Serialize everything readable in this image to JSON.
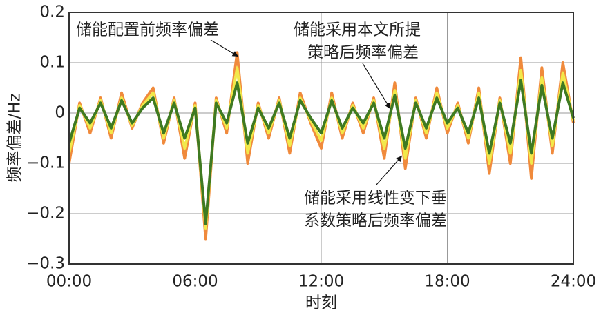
{
  "chart_data": {
    "type": "line",
    "y_label": "频率偏差/Hz",
    "x_label": "时刻",
    "xlim": [
      0,
      24
    ],
    "xticks": [
      {
        "value": 0,
        "label": "00:00"
      },
      {
        "value": 6,
        "label": "06:00"
      },
      {
        "value": 12,
        "label": "12:00"
      },
      {
        "value": 18,
        "label": "18:00"
      },
      {
        "value": 24,
        "label": "24:00"
      }
    ],
    "ylim": [
      -0.3,
      0.2
    ],
    "yticks": [
      {
        "value": -0.3,
        "label": "−0.3"
      },
      {
        "value": -0.2,
        "label": "−0.2"
      },
      {
        "value": -0.1,
        "label": "−0.1"
      },
      0,
      0.1,
      0.2
    ],
    "grid": true,
    "x": [
      0,
      0.5,
      1,
      1.5,
      2,
      2.5,
      3,
      3.5,
      4,
      4.5,
      5,
      5.5,
      6,
      6.5,
      7,
      7.5,
      8,
      8.5,
      9,
      9.5,
      10,
      10.5,
      11,
      11.5,
      12,
      12.5,
      13,
      13.5,
      14,
      14.5,
      15,
      15.5,
      16,
      16.5,
      17,
      17.5,
      18,
      18.5,
      19,
      19.5,
      20,
      20.5,
      21,
      21.5,
      22,
      22.5,
      23,
      23.5,
      24
    ],
    "series": [
      {
        "color": "#f08a3c",
        "values": [
          -0.1,
          0.02,
          -0.04,
          0.03,
          -0.05,
          0.04,
          -0.03,
          0.02,
          0.05,
          -0.06,
          0.03,
          -0.09,
          0.02,
          -0.25,
          0.03,
          -0.04,
          0.12,
          -0.1,
          0.02,
          -0.05,
          0.03,
          -0.08,
          0.04,
          -0.02,
          -0.07,
          0.04,
          -0.05,
          0.02,
          -0.04,
          0.03,
          -0.09,
          0.06,
          -0.11,
          0.03,
          -0.05,
          0.05,
          -0.04,
          0.02,
          -0.06,
          0.05,
          -0.12,
          0.03,
          -0.1,
          0.11,
          -0.13,
          0.09,
          -0.08,
          0.1,
          -0.02
        ]
      },
      {
        "color": "#f2e84a",
        "values": [
          -0.08,
          0.015,
          -0.03,
          0.025,
          -0.04,
          0.03,
          -0.025,
          0.015,
          0.04,
          -0.05,
          0.025,
          -0.07,
          0.015,
          -0.23,
          0.025,
          -0.03,
          0.09,
          -0.08,
          0.015,
          -0.04,
          0.025,
          -0.065,
          0.03,
          -0.015,
          -0.055,
          0.03,
          -0.04,
          0.015,
          -0.03,
          0.025,
          -0.07,
          0.045,
          -0.09,
          0.025,
          -0.04,
          0.04,
          -0.03,
          0.015,
          -0.05,
          0.04,
          -0.1,
          0.025,
          -0.08,
          0.085,
          -0.1,
          0.07,
          -0.065,
          0.08,
          -0.015
        ]
      },
      {
        "color": "#3f7a22",
        "values": [
          -0.06,
          0.01,
          -0.02,
          0.02,
          -0.03,
          0.025,
          -0.02,
          0.01,
          0.03,
          -0.04,
          0.02,
          -0.05,
          0.01,
          -0.22,
          0.02,
          -0.02,
          0.06,
          -0.06,
          0.01,
          -0.03,
          0.02,
          -0.05,
          0.025,
          -0.01,
          -0.04,
          0.025,
          -0.03,
          0.01,
          -0.02,
          0.02,
          -0.05,
          0.035,
          -0.07,
          0.02,
          -0.03,
          0.03,
          -0.02,
          0.01,
          -0.04,
          0.03,
          -0.08,
          0.02,
          -0.06,
          0.065,
          -0.08,
          0.055,
          -0.05,
          0.06,
          -0.01
        ]
      }
    ],
    "annotations": [
      {
        "lines": [
          "储能配置前频率偏差"
        ]
      },
      {
        "lines": [
          "储能采用本文所提",
          "策略后频率偏差"
        ]
      },
      {
        "lines": [
          "储能采用线性变下垂",
          "系数策略后频率偏差"
        ]
      }
    ]
  }
}
